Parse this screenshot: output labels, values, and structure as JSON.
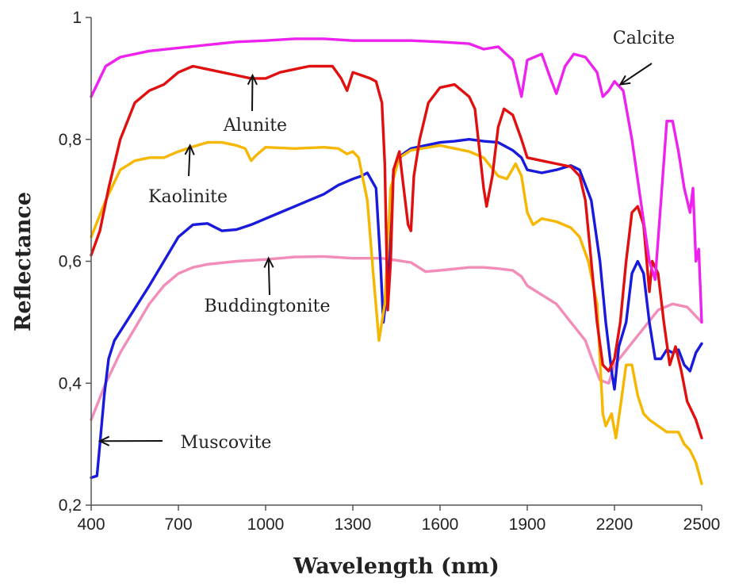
{
  "chart_data": {
    "type": "line",
    "title": "",
    "xlabel": "Wavelength (nm)",
    "ylabel": "Reflectance",
    "xlim": [
      400,
      2500
    ],
    "ylim": [
      0.2,
      1.0
    ],
    "x_ticks": [
      400,
      700,
      1000,
      1300,
      1600,
      1900,
      2200,
      2500
    ],
    "x_tick_labels": [
      "400",
      "700",
      "1000",
      "1300",
      "1600",
      "1900",
      "2200",
      "2500"
    ],
    "y_ticks": [
      0.2,
      0.4,
      0.6,
      0.8,
      1.0
    ],
    "y_tick_labels": [
      "0,2",
      "0,4",
      "0,6",
      "0,8",
      "1"
    ],
    "grid": false,
    "legend": "none",
    "series": [
      {
        "name": "Buddingtonite",
        "color": "#f28cb8",
        "points": [
          [
            400,
            0.34
          ],
          [
            450,
            0.4
          ],
          [
            500,
            0.45
          ],
          [
            550,
            0.49
          ],
          [
            600,
            0.53
          ],
          [
            650,
            0.56
          ],
          [
            700,
            0.58
          ],
          [
            750,
            0.59
          ],
          [
            800,
            0.595
          ],
          [
            900,
            0.6
          ],
          [
            1000,
            0.603
          ],
          [
            1100,
            0.607
          ],
          [
            1200,
            0.608
          ],
          [
            1300,
            0.605
          ],
          [
            1400,
            0.605
          ],
          [
            1500,
            0.598
          ],
          [
            1550,
            0.583
          ],
          [
            1600,
            0.585
          ],
          [
            1700,
            0.59
          ],
          [
            1750,
            0.59
          ],
          [
            1800,
            0.588
          ],
          [
            1850,
            0.585
          ],
          [
            1880,
            0.575
          ],
          [
            1900,
            0.56
          ],
          [
            1950,
            0.545
          ],
          [
            2000,
            0.53
          ],
          [
            2050,
            0.5
          ],
          [
            2100,
            0.47
          ],
          [
            2130,
            0.43
          ],
          [
            2150,
            0.405
          ],
          [
            2180,
            0.4
          ],
          [
            2200,
            0.43
          ],
          [
            2250,
            0.46
          ],
          [
            2300,
            0.49
          ],
          [
            2350,
            0.52
          ],
          [
            2400,
            0.53
          ],
          [
            2450,
            0.525
          ],
          [
            2500,
            0.5
          ]
        ]
      },
      {
        "name": "Muscovite",
        "color": "#1a1adc",
        "points": [
          [
            400,
            0.245
          ],
          [
            420,
            0.248
          ],
          [
            430,
            0.3
          ],
          [
            445,
            0.38
          ],
          [
            460,
            0.44
          ],
          [
            480,
            0.47
          ],
          [
            520,
            0.5
          ],
          [
            560,
            0.53
          ],
          [
            600,
            0.56
          ],
          [
            650,
            0.6
          ],
          [
            700,
            0.64
          ],
          [
            750,
            0.66
          ],
          [
            800,
            0.662
          ],
          [
            850,
            0.65
          ],
          [
            900,
            0.652
          ],
          [
            950,
            0.66
          ],
          [
            1000,
            0.67
          ],
          [
            1050,
            0.68
          ],
          [
            1100,
            0.69
          ],
          [
            1150,
            0.7
          ],
          [
            1200,
            0.71
          ],
          [
            1250,
            0.725
          ],
          [
            1300,
            0.735
          ],
          [
            1330,
            0.74
          ],
          [
            1350,
            0.745
          ],
          [
            1380,
            0.72
          ],
          [
            1395,
            0.6
          ],
          [
            1405,
            0.5
          ],
          [
            1420,
            0.56
          ],
          [
            1440,
            0.75
          ],
          [
            1470,
            0.775
          ],
          [
            1500,
            0.785
          ],
          [
            1550,
            0.79
          ],
          [
            1600,
            0.795
          ],
          [
            1650,
            0.797
          ],
          [
            1700,
            0.8
          ],
          [
            1750,
            0.797
          ],
          [
            1800,
            0.795
          ],
          [
            1850,
            0.782
          ],
          [
            1880,
            0.77
          ],
          [
            1900,
            0.75
          ],
          [
            1950,
            0.745
          ],
          [
            2000,
            0.75
          ],
          [
            2050,
            0.757
          ],
          [
            2080,
            0.75
          ],
          [
            2120,
            0.7
          ],
          [
            2150,
            0.6
          ],
          [
            2170,
            0.5
          ],
          [
            2190,
            0.42
          ],
          [
            2200,
            0.39
          ],
          [
            2215,
            0.46
          ],
          [
            2240,
            0.5
          ],
          [
            2260,
            0.58
          ],
          [
            2280,
            0.6
          ],
          [
            2300,
            0.58
          ],
          [
            2320,
            0.5
          ],
          [
            2340,
            0.44
          ],
          [
            2360,
            0.44
          ],
          [
            2380,
            0.455
          ],
          [
            2400,
            0.45
          ],
          [
            2420,
            0.455
          ],
          [
            2440,
            0.43
          ],
          [
            2460,
            0.42
          ],
          [
            2480,
            0.45
          ],
          [
            2500,
            0.465
          ]
        ]
      },
      {
        "name": "Kaolinite",
        "color": "#f5b700",
        "points": [
          [
            400,
            0.64
          ],
          [
            450,
            0.7
          ],
          [
            500,
            0.75
          ],
          [
            550,
            0.765
          ],
          [
            600,
            0.77
          ],
          [
            650,
            0.77
          ],
          [
            700,
            0.78
          ],
          [
            750,
            0.788
          ],
          [
            800,
            0.795
          ],
          [
            850,
            0.795
          ],
          [
            900,
            0.79
          ],
          [
            930,
            0.785
          ],
          [
            950,
            0.765
          ],
          [
            970,
            0.775
          ],
          [
            1000,
            0.787
          ],
          [
            1100,
            0.785
          ],
          [
            1200,
            0.787
          ],
          [
            1250,
            0.785
          ],
          [
            1280,
            0.776
          ],
          [
            1300,
            0.78
          ],
          [
            1320,
            0.77
          ],
          [
            1350,
            0.7
          ],
          [
            1370,
            0.58
          ],
          [
            1390,
            0.47
          ],
          [
            1410,
            0.53
          ],
          [
            1430,
            0.72
          ],
          [
            1460,
            0.77
          ],
          [
            1500,
            0.782
          ],
          [
            1600,
            0.79
          ],
          [
            1700,
            0.78
          ],
          [
            1750,
            0.77
          ],
          [
            1800,
            0.74
          ],
          [
            1830,
            0.735
          ],
          [
            1860,
            0.76
          ],
          [
            1880,
            0.74
          ],
          [
            1900,
            0.68
          ],
          [
            1920,
            0.66
          ],
          [
            1950,
            0.67
          ],
          [
            2000,
            0.665
          ],
          [
            2050,
            0.655
          ],
          [
            2080,
            0.64
          ],
          [
            2110,
            0.6
          ],
          [
            2140,
            0.53
          ],
          [
            2160,
            0.35
          ],
          [
            2170,
            0.33
          ],
          [
            2190,
            0.35
          ],
          [
            2205,
            0.31
          ],
          [
            2220,
            0.36
          ],
          [
            2240,
            0.43
          ],
          [
            2260,
            0.43
          ],
          [
            2280,
            0.38
          ],
          [
            2300,
            0.35
          ],
          [
            2320,
            0.34
          ],
          [
            2350,
            0.33
          ],
          [
            2380,
            0.32
          ],
          [
            2420,
            0.32
          ],
          [
            2440,
            0.3
          ],
          [
            2460,
            0.29
          ],
          [
            2480,
            0.27
          ],
          [
            2500,
            0.235
          ]
        ]
      },
      {
        "name": "Alunite",
        "color": "#e01010",
        "points": [
          [
            400,
            0.61
          ],
          [
            430,
            0.65
          ],
          [
            460,
            0.72
          ],
          [
            500,
            0.8
          ],
          [
            550,
            0.86
          ],
          [
            600,
            0.88
          ],
          [
            650,
            0.89
          ],
          [
            700,
            0.91
          ],
          [
            750,
            0.92
          ],
          [
            800,
            0.915
          ],
          [
            850,
            0.91
          ],
          [
            900,
            0.905
          ],
          [
            950,
            0.9
          ],
          [
            1000,
            0.9
          ],
          [
            1050,
            0.91
          ],
          [
            1100,
            0.915
          ],
          [
            1150,
            0.92
          ],
          [
            1200,
            0.92
          ],
          [
            1230,
            0.92
          ],
          [
            1260,
            0.9
          ],
          [
            1280,
            0.88
          ],
          [
            1300,
            0.91
          ],
          [
            1330,
            0.905
          ],
          [
            1360,
            0.9
          ],
          [
            1380,
            0.895
          ],
          [
            1400,
            0.86
          ],
          [
            1410,
            0.76
          ],
          [
            1420,
            0.52
          ],
          [
            1430,
            0.6
          ],
          [
            1440,
            0.75
          ],
          [
            1460,
            0.78
          ],
          [
            1470,
            0.74
          ],
          [
            1490,
            0.66
          ],
          [
            1500,
            0.65
          ],
          [
            1510,
            0.74
          ],
          [
            1530,
            0.8
          ],
          [
            1560,
            0.86
          ],
          [
            1600,
            0.885
          ],
          [
            1650,
            0.89
          ],
          [
            1700,
            0.87
          ],
          [
            1720,
            0.85
          ],
          [
            1750,
            0.72
          ],
          [
            1760,
            0.69
          ],
          [
            1780,
            0.74
          ],
          [
            1800,
            0.82
          ],
          [
            1820,
            0.85
          ],
          [
            1850,
            0.84
          ],
          [
            1880,
            0.8
          ],
          [
            1900,
            0.77
          ],
          [
            1950,
            0.765
          ],
          [
            2000,
            0.76
          ],
          [
            2050,
            0.755
          ],
          [
            2080,
            0.74
          ],
          [
            2100,
            0.7
          ],
          [
            2120,
            0.6
          ],
          [
            2140,
            0.5
          ],
          [
            2160,
            0.43
          ],
          [
            2180,
            0.42
          ],
          [
            2200,
            0.44
          ],
          [
            2220,
            0.5
          ],
          [
            2240,
            0.6
          ],
          [
            2260,
            0.68
          ],
          [
            2280,
            0.69
          ],
          [
            2300,
            0.66
          ],
          [
            2320,
            0.55
          ],
          [
            2330,
            0.6
          ],
          [
            2350,
            0.58
          ],
          [
            2370,
            0.5
          ],
          [
            2390,
            0.43
          ],
          [
            2410,
            0.46
          ],
          [
            2430,
            0.42
          ],
          [
            2450,
            0.37
          ],
          [
            2480,
            0.34
          ],
          [
            2500,
            0.31
          ]
        ]
      },
      {
        "name": "Calcite",
        "color": "#ee22ee",
        "points": [
          [
            400,
            0.87
          ],
          [
            450,
            0.92
          ],
          [
            500,
            0.935
          ],
          [
            600,
            0.945
          ],
          [
            700,
            0.95
          ],
          [
            800,
            0.955
          ],
          [
            900,
            0.96
          ],
          [
            1000,
            0.962
          ],
          [
            1100,
            0.965
          ],
          [
            1200,
            0.965
          ],
          [
            1300,
            0.962
          ],
          [
            1400,
            0.962
          ],
          [
            1500,
            0.962
          ],
          [
            1600,
            0.96
          ],
          [
            1700,
            0.957
          ],
          [
            1750,
            0.948
          ],
          [
            1800,
            0.952
          ],
          [
            1850,
            0.93
          ],
          [
            1880,
            0.87
          ],
          [
            1900,
            0.93
          ],
          [
            1950,
            0.94
          ],
          [
            1980,
            0.9
          ],
          [
            2000,
            0.875
          ],
          [
            2030,
            0.92
          ],
          [
            2060,
            0.94
          ],
          [
            2100,
            0.935
          ],
          [
            2140,
            0.91
          ],
          [
            2160,
            0.87
          ],
          [
            2180,
            0.88
          ],
          [
            2200,
            0.895
          ],
          [
            2230,
            0.88
          ],
          [
            2260,
            0.8
          ],
          [
            2290,
            0.7
          ],
          [
            2320,
            0.6
          ],
          [
            2340,
            0.57
          ],
          [
            2360,
            0.7
          ],
          [
            2380,
            0.83
          ],
          [
            2400,
            0.83
          ],
          [
            2420,
            0.78
          ],
          [
            2440,
            0.72
          ],
          [
            2460,
            0.68
          ],
          [
            2470,
            0.72
          ],
          [
            2480,
            0.6
          ],
          [
            2490,
            0.62
          ],
          [
            2500,
            0.5
          ]
        ]
      }
    ],
    "annotations": [
      {
        "text": "Calcite",
        "arrow_to": [
          2220,
          0.89
        ]
      },
      {
        "text": "Alunite",
        "arrow_to": [
          955,
          0.905
        ]
      },
      {
        "text": "Kaolinite",
        "arrow_to": [
          740,
          0.79
        ]
      },
      {
        "text": "Buddingtonite",
        "arrow_to": [
          1010,
          0.605
        ]
      },
      {
        "text": "Muscovite",
        "arrow_to": [
          430,
          0.305
        ]
      }
    ]
  }
}
